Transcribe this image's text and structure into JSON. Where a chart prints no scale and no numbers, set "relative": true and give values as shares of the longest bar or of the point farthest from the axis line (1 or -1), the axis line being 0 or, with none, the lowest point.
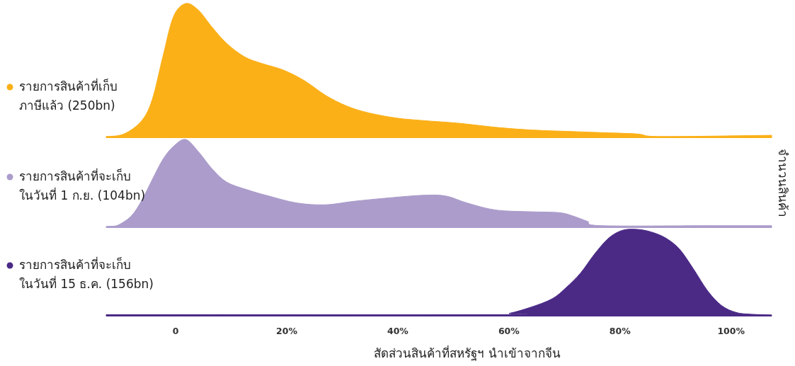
{
  "chart_data": [
    {
      "type": "area",
      "relative": true,
      "legend": "left",
      "tick_labels": false,
      "xlim": [
        -12.5,
        107.3
      ],
      "x": [
        -12.5,
        -9.3,
        -6.1,
        -4.2,
        -2.3,
        -0.4,
        1.8,
        4.1,
        6.6,
        9.2,
        12.4,
        15.5,
        19.4,
        23.2,
        27.0,
        30.8,
        34.6,
        39.7,
        44.8,
        51.2,
        57.6,
        63.9,
        70.3,
        76.7,
        83.1,
        87.5,
        107.3
      ],
      "series": [
        {
          "name": "รายการสินค้าที่เก็บ\nภาษีแล้ว (250bn)",
          "color": "#fbb018",
          "values": [
            0,
            0.02,
            0.12,
            0.28,
            0.6,
            0.9,
            1,
            0.95,
            0.82,
            0.7,
            0.6,
            0.55,
            0.5,
            0.42,
            0.31,
            0.23,
            0.18,
            0.14,
            0.12,
            0.1,
            0.07,
            0.05,
            0.04,
            0.03,
            0.02,
            0,
            0.01
          ]
        }
      ]
    },
    {
      "type": "area",
      "relative": true,
      "legend": "left",
      "tick_labels": false,
      "xlim": [
        -12.5,
        107.3
      ],
      "ylabel": "จำนวนสินค้า",
      "x": [
        -12.5,
        -10.6,
        -8.0,
        -6.1,
        -4.2,
        -2.3,
        -0.4,
        1.8,
        4.1,
        6.6,
        9.2,
        13.0,
        16.8,
        21.9,
        27.0,
        32.1,
        38.5,
        44.8,
        48.7,
        52.5,
        57.6,
        63.9,
        69.0,
        71.6,
        74.1,
        76.7,
        95.8,
        107.3
      ],
      "series": [
        {
          "name": "รายการสินค้าที่จะเก็บ\nในวันที่ 1 ก.ย. (104bn)",
          "color": "#ab9ccb",
          "values": [
            0,
            0.01,
            0.12,
            0.3,
            0.54,
            0.77,
            0.92,
            1,
            0.86,
            0.66,
            0.51,
            0.42,
            0.35,
            0.27,
            0.25,
            0.29,
            0.33,
            0.36,
            0.35,
            0.27,
            0.19,
            0.17,
            0.16,
            0.12,
            0.06,
            0.01,
            0.01,
            0.01
          ]
        }
      ]
    },
    {
      "type": "area",
      "relative": true,
      "legend": "left",
      "tick_labels": "x",
      "xlim": [
        -12.5,
        107.3
      ],
      "xlabel": "สัดส่วนสินค้าที่สหรัฐฯ นำเข้าจากจีน",
      "xticks": [
        0,
        {
          "value": 20,
          "label": "20%"
        },
        {
          "value": 40,
          "label": "40%"
        },
        {
          "value": 60,
          "label": "60%"
        },
        {
          "value": 80,
          "label": "80%"
        },
        {
          "value": 100,
          "label": "100%"
        }
      ],
      "x": [
        -12.5,
        57.6,
        60.1,
        63.9,
        67.8,
        70.3,
        72.9,
        75.4,
        78.0,
        80.5,
        83.1,
        85.6,
        88.2,
        90.7,
        93.2,
        95.8,
        98.3,
        100.9,
        103.4,
        107.3
      ],
      "series": [
        {
          "name": "รายการสินค้าที่จะเก็บ\nในวันที่ 15 ธ.ค. (156bn)",
          "color": "#4b2a86",
          "values": [
            0.004,
            0.004,
            0.02,
            0.09,
            0.19,
            0.32,
            0.49,
            0.71,
            0.9,
            0.99,
            1,
            0.97,
            0.9,
            0.77,
            0.54,
            0.28,
            0.11,
            0.03,
            0.01,
            0
          ]
        }
      ]
    }
  ]
}
